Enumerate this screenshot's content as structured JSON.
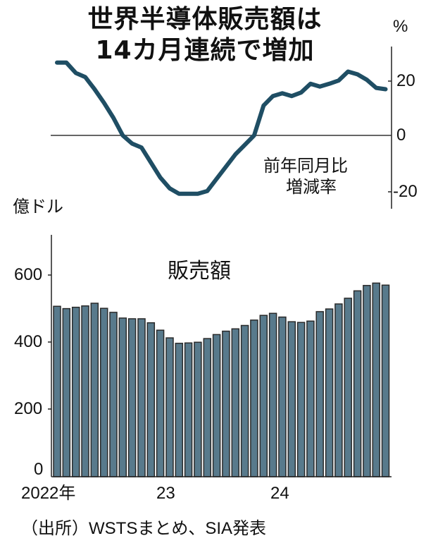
{
  "title": {
    "line1": "世界半導体販売額は",
    "line2": "14カ月連続で増加"
  },
  "line_chart": {
    "unit": "%",
    "label_line1": "前年同月比",
    "label_line2": "増減率",
    "y_ticks": [
      "20",
      "0",
      "-20"
    ]
  },
  "bar_chart": {
    "unit": "億ドル",
    "label": "販売額",
    "y_ticks": [
      "600",
      "400",
      "200",
      "0"
    ],
    "x_ticks": [
      "2022年",
      "23",
      "24"
    ]
  },
  "source": "（出所）WSTSまとめ、SIA発表",
  "colors": {
    "line": "#1f4e64",
    "bar_fill": "#587a8c",
    "bar_stroke": "#2a2a2a",
    "axis": "#222222"
  },
  "chart_data": [
    {
      "type": "line",
      "title": "前年同月比増減率",
      "ylabel": "%",
      "ylim": [
        -25,
        30
      ],
      "y_ticks": [
        20,
        0,
        -20
      ],
      "x": [
        "2022-01",
        "2022-02",
        "2022-03",
        "2022-04",
        "2022-05",
        "2022-06",
        "2022-07",
        "2022-08",
        "2022-09",
        "2022-10",
        "2022-11",
        "2022-12",
        "2023-01",
        "2023-02",
        "2023-03",
        "2023-04",
        "2023-05",
        "2023-06",
        "2023-07",
        "2023-08",
        "2023-09",
        "2023-10",
        "2023-11",
        "2023-12",
        "2024-01",
        "2024-02",
        "2024-03",
        "2024-04",
        "2024-05",
        "2024-06",
        "2024-07",
        "2024-08",
        "2024-09",
        "2024-10",
        "2024-11",
        "2024-12"
      ],
      "values": [
        26.8,
        26.8,
        23.0,
        21.5,
        17.0,
        12.0,
        6.5,
        0.0,
        -3.0,
        -4.5,
        -10.0,
        -15.5,
        -19.5,
        -21.5,
        -21.5,
        -21.5,
        -20.5,
        -16.0,
        -11.5,
        -7.0,
        -3.5,
        0.0,
        11.0,
        14.5,
        15.5,
        14.5,
        15.8,
        19.0,
        18.0,
        19.0,
        20.2,
        23.5,
        22.5,
        20.5,
        17.5,
        17.0
      ]
    },
    {
      "type": "bar",
      "title": "販売額",
      "ylabel": "億ドル",
      "ylim": [
        0,
        700
      ],
      "y_ticks": [
        0,
        200,
        400,
        600
      ],
      "categories": [
        "2022-01",
        "2022-02",
        "2022-03",
        "2022-04",
        "2022-05",
        "2022-06",
        "2022-07",
        "2022-08",
        "2022-09",
        "2022-10",
        "2022-11",
        "2022-12",
        "2023-01",
        "2023-02",
        "2023-03",
        "2023-04",
        "2023-05",
        "2023-06",
        "2023-07",
        "2023-08",
        "2023-09",
        "2023-10",
        "2023-11",
        "2023-12",
        "2024-01",
        "2024-02",
        "2024-03",
        "2024-04",
        "2024-05",
        "2024-06",
        "2024-07",
        "2024-08",
        "2024-09",
        "2024-10",
        "2024-11",
        "2024-12"
      ],
      "values": [
        507,
        500,
        504,
        508,
        516,
        501,
        489,
        472,
        470,
        470,
        458,
        436,
        413,
        397,
        398,
        400,
        411,
        423,
        433,
        440,
        450,
        466,
        480,
        486,
        475,
        461,
        459,
        463,
        491,
        499,
        514,
        531,
        553,
        569,
        576,
        570
      ],
      "x_tick_labels": [
        "2022年",
        "23",
        "24"
      ]
    }
  ]
}
